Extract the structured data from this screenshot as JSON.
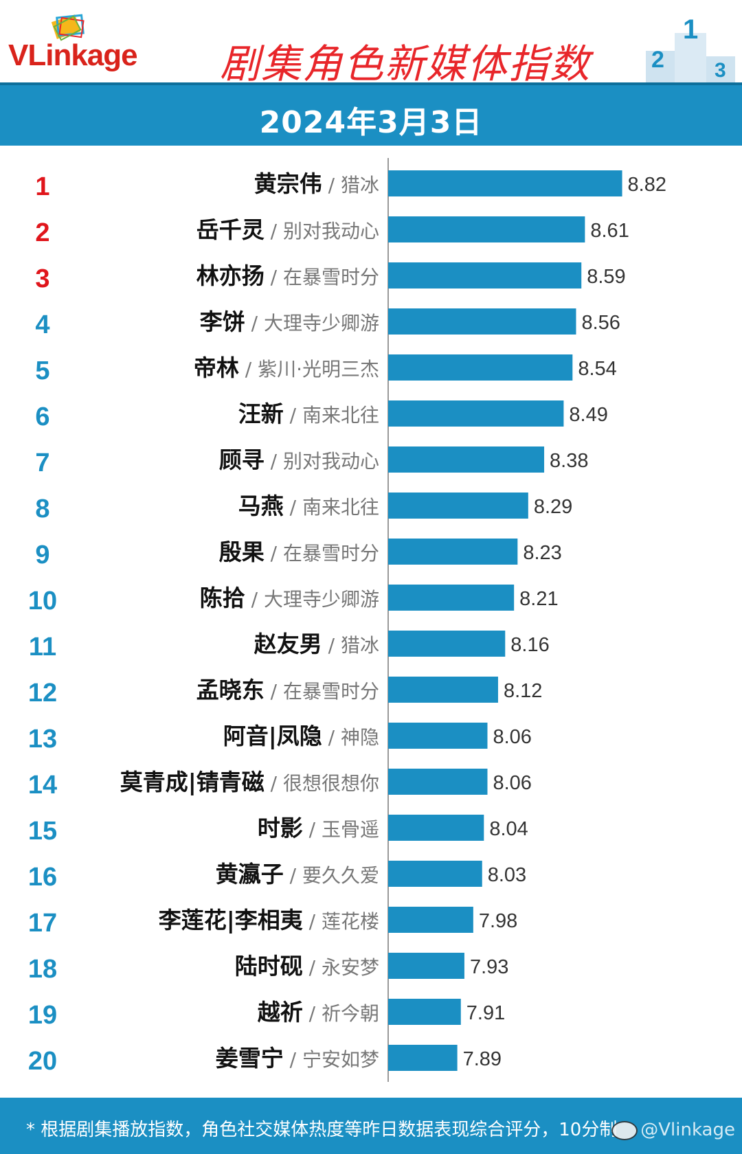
{
  "header": {
    "logo_text": "VLinkage",
    "title": "剧集角色新媒体指数"
  },
  "date": "2024年3月3日",
  "chart_data": {
    "type": "bar",
    "orientation": "horizontal",
    "title": "剧集角色新媒体指数",
    "subtitle": "2024年3月3日",
    "xlim": [
      7.5,
      8.95
    ],
    "rows": [
      {
        "rank": "1",
        "name": "黄宗伟",
        "drama": "猎冰",
        "value": 8.82
      },
      {
        "rank": "2",
        "name": "岳千灵",
        "drama": "别对我动心",
        "value": 8.61
      },
      {
        "rank": "3",
        "name": "林亦扬",
        "drama": "在暴雪时分",
        "value": 8.59
      },
      {
        "rank": "4",
        "name": "李饼",
        "drama": "大理寺少卿游",
        "value": 8.56
      },
      {
        "rank": "5",
        "name": "帝林",
        "drama": "紫川·光明三杰",
        "value": 8.54
      },
      {
        "rank": "6",
        "name": "汪新",
        "drama": "南来北往",
        "value": 8.49
      },
      {
        "rank": "7",
        "name": "顾寻",
        "drama": "别对我动心",
        "value": 8.38
      },
      {
        "rank": "8",
        "name": "马燕",
        "drama": "南来北往",
        "value": 8.29
      },
      {
        "rank": "9",
        "name": "殷果",
        "drama": "在暴雪时分",
        "value": 8.23
      },
      {
        "rank": "10",
        "name": "陈拾",
        "drama": "大理寺少卿游",
        "value": 8.21
      },
      {
        "rank": "11",
        "name": "赵友男",
        "drama": "猎冰",
        "value": 8.16
      },
      {
        "rank": "12",
        "name": "孟晓东",
        "drama": "在暴雪时分",
        "value": 8.12
      },
      {
        "rank": "13",
        "name": "阿音|凤隐",
        "drama": "神隐",
        "value": 8.06
      },
      {
        "rank": "14",
        "name": "莫青成|锖青磁",
        "drama": "很想很想你",
        "value": 8.06
      },
      {
        "rank": "15",
        "name": "时影",
        "drama": "玉骨遥",
        "value": 8.04
      },
      {
        "rank": "16",
        "name": "黄瀛子",
        "drama": "要久久爱",
        "value": 8.03
      },
      {
        "rank": "17",
        "name": "李莲花|李相夷",
        "drama": "莲花楼",
        "value": 7.98
      },
      {
        "rank": "18",
        "name": "陆时砚",
        "drama": "永安梦",
        "value": 7.93
      },
      {
        "rank": "19",
        "name": "越祈",
        "drama": "祈今朝",
        "value": 7.91
      },
      {
        "rank": "20",
        "name": "姜雪宁",
        "drama": "宁安如梦",
        "value": 7.89
      }
    ],
    "colors": {
      "bar": "#1b8fc3",
      "top_rank": "#e0151b",
      "rank": "#1b8fc3",
      "value_text": "#333333",
      "drama_text": "#777777"
    }
  },
  "footer": {
    "note": "* 根据剧集播放指数，角色社交媒体热度等昨日数据表现综合评分，10分制",
    "watermark": "@Vlinkage"
  },
  "icons": [
    "vlinkage-logo-icon",
    "podium-icon",
    "weibo-icon"
  ]
}
